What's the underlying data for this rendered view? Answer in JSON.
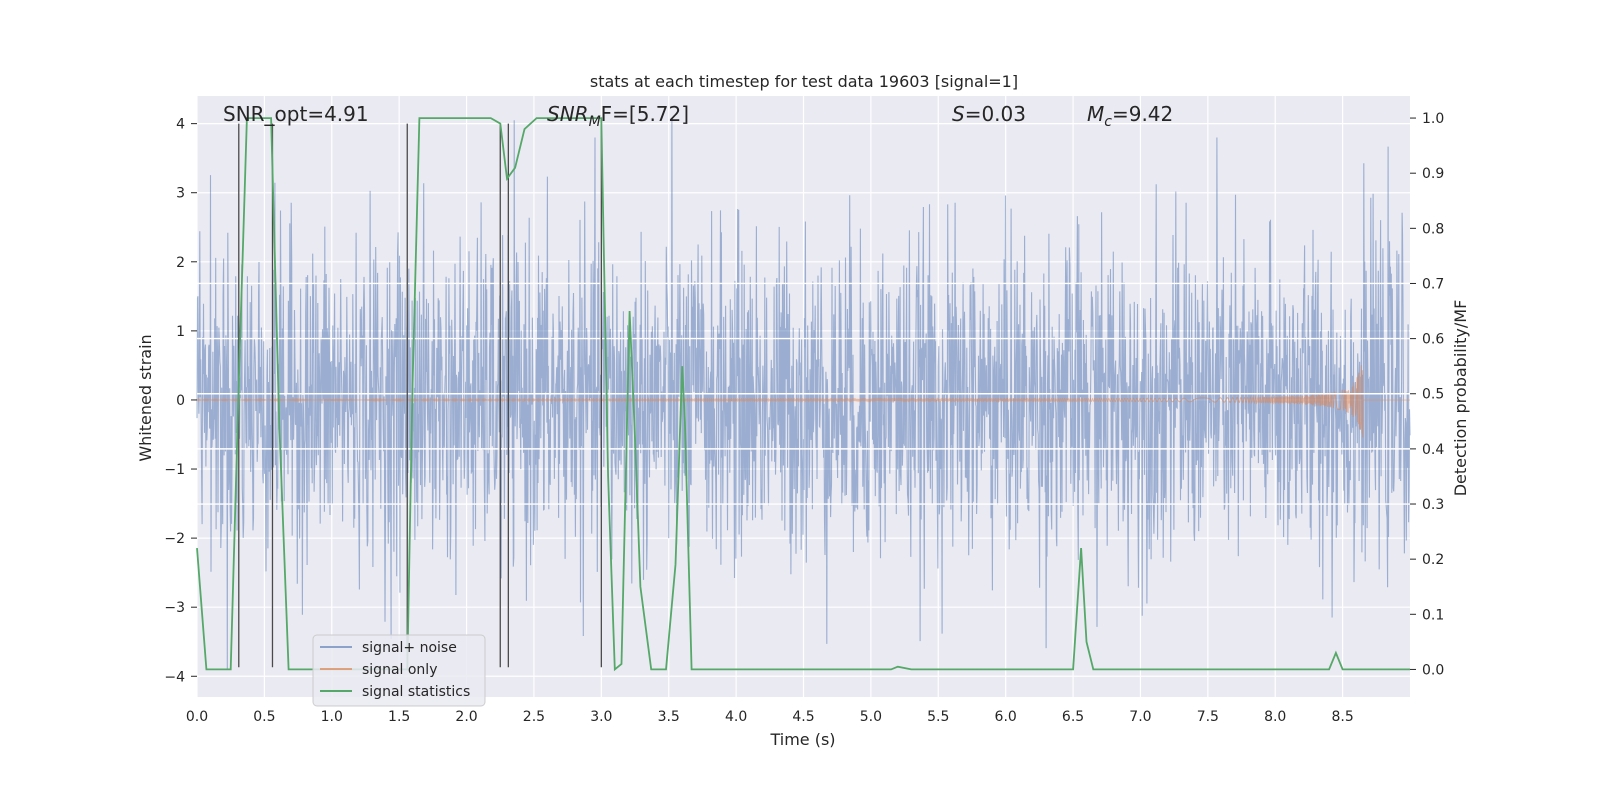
{
  "chart_data": {
    "type": "line",
    "title": "stats at each timestep for test data 19603 [signal=1]",
    "xlabel": "Time (s)",
    "ylabel": "Whitened strain",
    "ylabel_right": "Detection probability/MF",
    "xlim": [
      0,
      9.0
    ],
    "ylim": [
      -4.3,
      4.4
    ],
    "ylim_right": [
      -0.05,
      1.04
    ],
    "grid": true,
    "legend_position": "lower-left",
    "x_ticks": [
      "0.0",
      "0.5",
      "1.0",
      "1.5",
      "2.0",
      "2.5",
      "3.0",
      "3.5",
      "4.0",
      "4.5",
      "5.0",
      "5.5",
      "6.0",
      "6.5",
      "7.0",
      "7.5",
      "8.0",
      "8.5"
    ],
    "y_ticks": [
      "4",
      "3",
      "2",
      "1",
      "0",
      "−1",
      "−2",
      "−3",
      "−4"
    ],
    "y_ticks_right": [
      "1.0",
      "0.9",
      "0.8",
      "0.7",
      "0.6",
      "0.5",
      "0.4",
      "0.3",
      "0.2",
      "0.1",
      "0.0"
    ],
    "annotations": {
      "snr_opt": "SNR_opt=4.91",
      "snr_mf_main": "SNR",
      "snr_mf_sub": "M",
      "snr_mf_rest": "F=[5.72]",
      "s_var": "S",
      "s_rest": "=0.03",
      "mc_var": "M",
      "mc_sub": "c",
      "mc_rest": "=9.42"
    },
    "series": [
      {
        "name": "signal+ noise",
        "color": "#4c72b0",
        "description_units": "whitened strain, noise band approx ±1.7 with peaks to ±4"
      },
      {
        "name": "signal only",
        "color": "#dd8452",
        "chirp_end_time": 8.65,
        "chirp_peak_amplitude": 0.7
      },
      {
        "name": "signal statistics",
        "color": "#55a868",
        "x": [
          0.0,
          0.07,
          0.12,
          0.18,
          0.25,
          0.31,
          0.37,
          0.45,
          0.55,
          0.61,
          0.68,
          0.75,
          0.85,
          1.0,
          1.2,
          1.4,
          1.56,
          1.6,
          1.65,
          1.75,
          1.9,
          2.05,
          2.18,
          2.25,
          2.3,
          2.36,
          2.43,
          2.52,
          2.65,
          2.8,
          2.95,
          3.0,
          3.05,
          3.1,
          3.15,
          3.21,
          3.25,
          3.29,
          3.37,
          3.48,
          3.55,
          3.6,
          3.62,
          3.67,
          3.72,
          3.8,
          3.9,
          4.0,
          4.5,
          5.0,
          5.15,
          5.2,
          5.3,
          5.5,
          5.6,
          5.7,
          6.0,
          6.5,
          6.56,
          6.6,
          6.65,
          6.7,
          7.0,
          7.5,
          7.9,
          8.2,
          8.4,
          8.45,
          8.5,
          8.7,
          9.0
        ],
        "values": [
          0.22,
          0.0,
          0.0,
          0.0,
          0.0,
          0.52,
          1.0,
          1.0,
          1.0,
          0.45,
          0.0,
          0.0,
          0.0,
          0.0,
          0.0,
          0.0,
          0.0,
          0.52,
          1.0,
          1.0,
          1.0,
          1.0,
          1.0,
          0.99,
          0.89,
          0.91,
          0.98,
          1.0,
          1.0,
          1.0,
          1.0,
          1.0,
          0.35,
          0.0,
          0.01,
          0.65,
          0.42,
          0.15,
          0.0,
          0.0,
          0.19,
          0.55,
          0.45,
          0.0,
          0.0,
          0.0,
          0.0,
          0.0,
          0.0,
          0.0,
          0.0,
          0.005,
          0.0,
          0.0,
          0.0,
          0.0,
          0.0,
          0.0,
          0.22,
          0.05,
          0.0,
          0.0,
          0.0,
          0.0,
          0.0,
          0.0,
          0.0,
          0.03,
          0.0,
          0.0,
          0.0
        ]
      }
    ],
    "vertical_lines_x": [
      0.31,
      0.56,
      1.56,
      2.25,
      2.31,
      3.0
    ],
    "horizontal_lines_y_right": [
      0.7,
      0.6,
      0.5,
      0.4,
      0.3
    ],
    "legend": [
      "signal+ noise",
      "signal only",
      "signal statistics"
    ],
    "colors": {
      "plot_background": "#eaeaf2",
      "grid": "#ffffff",
      "noise": "#4c72b0",
      "signal": "#dd8452",
      "statistics": "#55a868",
      "vertical_lines": "#4a4a4a"
    }
  }
}
